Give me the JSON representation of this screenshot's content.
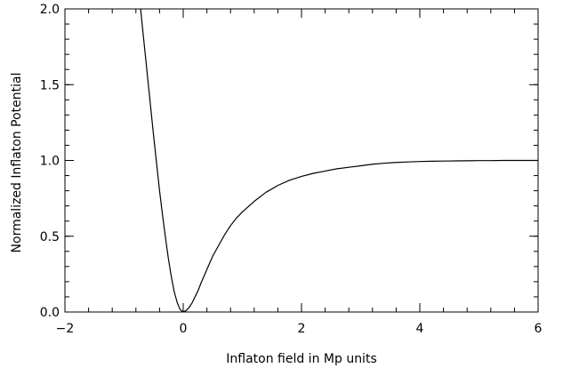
{
  "chart_data": {
    "type": "line",
    "xlabel": "Inflaton field in Mp units",
    "ylabel": "Normalized Inflaton Potential",
    "xlim": [
      -2,
      6
    ],
    "ylim": [
      0,
      2
    ],
    "x_ticks": [
      {
        "value": -2,
        "label": "−2"
      },
      {
        "value": 0,
        "label": "0"
      },
      {
        "value": 2,
        "label": "2"
      },
      {
        "value": 4,
        "label": "4"
      },
      {
        "value": 6,
        "label": "6"
      }
    ],
    "y_ticks": [
      {
        "value": 0.0,
        "label": "0.0"
      },
      {
        "value": 0.5,
        "label": "0.5"
      },
      {
        "value": 1.0,
        "label": "1.0"
      },
      {
        "value": 1.5,
        "label": "1.5"
      },
      {
        "value": 2.0,
        "label": "2.0"
      }
    ],
    "x_minor_step": 0.4,
    "y_minor_step": 0.1,
    "grid": false,
    "line_color": "#000000",
    "series": [
      {
        "x": [
          -0.72,
          -0.7,
          -0.65,
          -0.6,
          -0.55,
          -0.5,
          -0.45,
          -0.4,
          -0.35,
          -0.3,
          -0.25,
          -0.2,
          -0.15,
          -0.1,
          -0.05,
          0.0,
          0.05,
          0.1,
          0.15,
          0.2,
          0.25,
          0.3,
          0.4,
          0.5,
          0.6,
          0.7,
          0.8,
          0.9,
          1.0,
          1.2,
          1.4,
          1.6,
          1.8,
          2.0,
          2.2,
          2.4,
          2.6,
          2.8,
          3.0,
          3.2,
          3.4,
          3.6,
          3.8,
          4.0,
          4.2,
          4.4,
          4.6,
          4.8,
          5.0,
          5.2,
          5.4,
          5.6,
          5.8,
          6.0
        ],
        "y": [
          2.0,
          1.92,
          1.73,
          1.54,
          1.35,
          1.16,
          0.98,
          0.8,
          0.64,
          0.49,
          0.35,
          0.23,
          0.13,
          0.06,
          0.015,
          0.0,
          0.01,
          0.03,
          0.06,
          0.1,
          0.14,
          0.19,
          0.28,
          0.37,
          0.44,
          0.51,
          0.57,
          0.62,
          0.66,
          0.73,
          0.79,
          0.835,
          0.87,
          0.895,
          0.915,
          0.93,
          0.945,
          0.955,
          0.965,
          0.975,
          0.982,
          0.987,
          0.99,
          0.993,
          0.995,
          0.996,
          0.997,
          0.998,
          0.999,
          0.999,
          1.0,
          1.0,
          1.0,
          1.0
        ]
      }
    ]
  }
}
